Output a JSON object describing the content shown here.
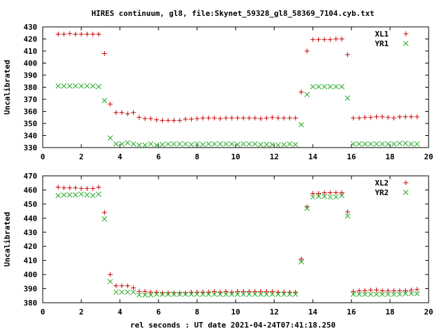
{
  "chart_data": {
    "type": "scatter",
    "title": "HIRES continuum, gl8, file:Skynet_59328_gl8_58369_7104.cyb.txt",
    "xlabel": "rel seconds : UT date 2021-04-24T07:41:18.250",
    "colors": {
      "plus": "#cc0000",
      "cross": "#22aa22",
      "axes": "#000000",
      "background": "#ffffff"
    },
    "grid": false,
    "legend_position": "top-right",
    "panels": [
      {
        "ylabel": "Uncalibrated",
        "xlim": [
          0,
          20
        ],
        "ylim": [
          330,
          430
        ],
        "xticks": [
          "0",
          "2",
          "4",
          "6",
          "8",
          "10",
          "12",
          "14",
          "16",
          "18",
          "20"
        ],
        "yticks": [
          "330",
          "340",
          "350",
          "360",
          "370",
          "380",
          "390",
          "400",
          "410",
          "420",
          "430"
        ],
        "series": [
          {
            "name": "XL1",
            "marker": "plus",
            "x": [
              0.8,
              1.1,
              1.4,
              1.7,
              2.0,
              2.3,
              2.6,
              2.9,
              3.2,
              3.5,
              3.8,
              4.1,
              4.4,
              4.7,
              5.0,
              5.3,
              5.6,
              5.9,
              6.2,
              6.5,
              6.8,
              7.1,
              7.4,
              7.7,
              8.0,
              8.3,
              8.6,
              8.9,
              9.2,
              9.5,
              9.8,
              10.1,
              10.4,
              10.7,
              11.0,
              11.3,
              11.6,
              11.9,
              12.2,
              12.5,
              12.8,
              13.1,
              13.4,
              13.7,
              14.0,
              14.3,
              14.6,
              14.9,
              15.2,
              15.5,
              15.8,
              16.1,
              16.4,
              16.7,
              17.0,
              17.3,
              17.6,
              17.9,
              18.2,
              18.5,
              18.8,
              19.1,
              19.4
            ],
            "y": [
              424,
              424,
              424.5,
              424,
              424,
              424,
              424,
              424,
              408,
              366,
              359,
              359,
              358,
              359,
              355,
              354,
              354,
              353,
              352.5,
              352.5,
              352.5,
              352.5,
              353.5,
              353.5,
              354,
              354.5,
              354.5,
              354.5,
              354,
              354.5,
              354.5,
              354.5,
              354.5,
              354.5,
              354.5,
              354,
              354.5,
              355,
              354.5,
              354.5,
              354.5,
              354.5,
              376,
              410,
              419.5,
              419.5,
              419.5,
              419.5,
              420,
              420,
              407,
              354.5,
              354.5,
              355,
              355,
              355.5,
              355.5,
              355,
              354.5,
              355.5,
              355.5,
              355.5,
              355.5
            ]
          },
          {
            "name": "YR1",
            "marker": "cross",
            "x": [
              0.8,
              1.1,
              1.4,
              1.7,
              2.0,
              2.3,
              2.6,
              2.9,
              3.2,
              3.5,
              3.8,
              4.1,
              4.4,
              4.7,
              5.0,
              5.3,
              5.6,
              5.9,
              6.2,
              6.5,
              6.8,
              7.1,
              7.4,
              7.7,
              8.0,
              8.3,
              8.6,
              8.9,
              9.2,
              9.5,
              9.8,
              10.1,
              10.4,
              10.7,
              11.0,
              11.3,
              11.6,
              11.9,
              12.2,
              12.5,
              12.8,
              13.1,
              13.4,
              13.7,
              14.0,
              14.3,
              14.6,
              14.9,
              15.2,
              15.5,
              15.8,
              16.1,
              16.4,
              16.7,
              17.0,
              17.3,
              17.6,
              17.9,
              18.2,
              18.5,
              18.8,
              19.1,
              19.4
            ],
            "y": [
              381,
              381,
              381,
              381,
              381,
              381,
              381,
              380.5,
              369,
              338,
              333,
              333,
              334,
              333,
              332,
              332,
              333,
              332,
              332.5,
              333,
              333,
              333,
              333,
              332.5,
              333,
              332.5,
              333,
              333,
              333,
              333,
              333,
              332.5,
              333,
              333,
              333,
              332.5,
              332.5,
              332.5,
              332,
              332.5,
              333,
              332.5,
              349,
              374,
              380.5,
              380.5,
              380.5,
              380.5,
              380.5,
              380.5,
              371,
              333,
              333,
              333,
              333,
              333,
              333,
              333,
              333,
              333.5,
              333.5,
              333,
              333
            ]
          }
        ]
      },
      {
        "ylabel": "Uncalibrated",
        "xlim": [
          0,
          20
        ],
        "ylim": [
          380,
          470
        ],
        "xticks": [
          "0",
          "2",
          "4",
          "6",
          "8",
          "10",
          "12",
          "14",
          "16",
          "18",
          "20"
        ],
        "yticks": [
          "380",
          "390",
          "400",
          "410",
          "420",
          "430",
          "440",
          "450",
          "460",
          "470"
        ],
        "series": [
          {
            "name": "XL2",
            "marker": "plus",
            "x": [
              0.8,
              1.1,
              1.4,
              1.7,
              2.0,
              2.3,
              2.6,
              2.9,
              3.2,
              3.5,
              3.8,
              4.1,
              4.4,
              4.7,
              5.0,
              5.3,
              5.6,
              5.9,
              6.2,
              6.5,
              6.8,
              7.1,
              7.4,
              7.7,
              8.0,
              8.3,
              8.6,
              8.9,
              9.2,
              9.5,
              9.8,
              10.1,
              10.4,
              10.7,
              11.0,
              11.3,
              11.6,
              11.9,
              12.2,
              12.5,
              12.8,
              13.1,
              13.4,
              13.7,
              14.0,
              14.3,
              14.6,
              14.9,
              15.2,
              15.5,
              15.8,
              16.1,
              16.4,
              16.7,
              17.0,
              17.3,
              17.6,
              17.9,
              18.2,
              18.5,
              18.8,
              19.1,
              19.4
            ],
            "y": [
              462,
              461.5,
              461.5,
              461.5,
              461,
              461,
              461,
              462,
              444,
              400,
              392,
              392,
              392,
              390.5,
              388,
              388,
              387.5,
              387.5,
              387,
              387,
              387,
              387,
              387,
              387.5,
              387.5,
              387.5,
              387.5,
              388,
              387.5,
              388,
              387.5,
              388,
              388,
              388,
              388,
              388,
              388,
              388,
              387.5,
              387.5,
              387.5,
              387.5,
              411,
              448,
              457.5,
              457.5,
              458,
              458,
              458,
              458,
              444.5,
              388,
              388.5,
              388.5,
              389,
              389,
              388.5,
              388.5,
              388.5,
              388.5,
              388.5,
              389,
              389.5
            ]
          },
          {
            "name": "YR2",
            "marker": "cross",
            "x": [
              0.8,
              1.1,
              1.4,
              1.7,
              2.0,
              2.3,
              2.6,
              2.9,
              3.2,
              3.5,
              3.8,
              4.1,
              4.4,
              4.7,
              5.0,
              5.3,
              5.6,
              5.9,
              6.2,
              6.5,
              6.8,
              7.1,
              7.4,
              7.7,
              8.0,
              8.3,
              8.6,
              8.9,
              9.2,
              9.5,
              9.8,
              10.1,
              10.4,
              10.7,
              11.0,
              11.3,
              11.6,
              11.9,
              12.2,
              12.5,
              12.8,
              13.1,
              13.4,
              13.7,
              14.0,
              14.3,
              14.6,
              14.9,
              15.2,
              15.5,
              15.8,
              16.1,
              16.4,
              16.7,
              17.0,
              17.3,
              17.6,
              17.9,
              18.2,
              18.5,
              18.8,
              19.1,
              19.4
            ],
            "y": [
              456,
              456.5,
              456.5,
              456.5,
              457,
              456.5,
              456,
              457,
              439.5,
              395,
              387.5,
              387.5,
              387.5,
              387.5,
              385.5,
              385.5,
              385.5,
              386,
              386,
              386,
              386,
              386,
              386,
              386,
              386,
              386,
              386,
              386,
              386,
              386,
              386,
              386,
              386,
              386,
              386,
              386,
              386,
              386,
              386,
              386,
              386,
              386,
              409,
              447,
              455,
              455.5,
              455.5,
              455,
              455,
              456,
              441.5,
              386,
              386,
              386,
              386,
              386,
              386,
              386,
              386,
              386,
              386.5,
              386.5,
              386.5
            ]
          }
        ]
      }
    ]
  }
}
